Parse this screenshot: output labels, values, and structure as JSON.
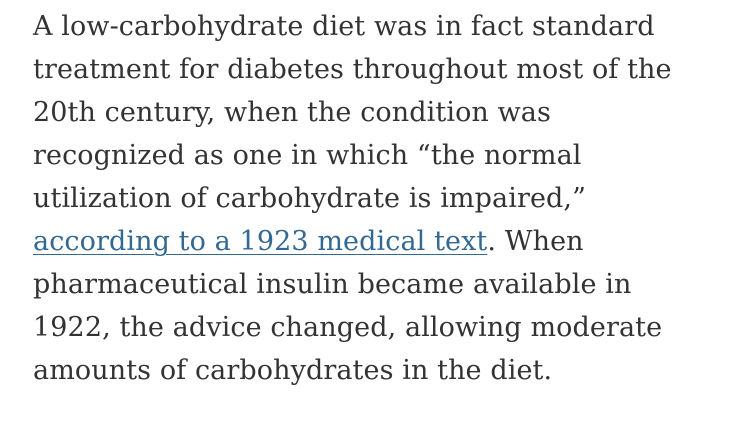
{
  "colors": {
    "page_background": "#ffffff",
    "body_text": "#333333",
    "link": "#326891"
  },
  "paragraph": {
    "text_before_link": "A low-carbohydrate diet was in fact standard\ntreatment for diabetes throughout most of the\n20th century, when the condition was\nrecognized as one in which “the normal\nutilization of carbohydrate is impaired,”\n",
    "link_text": "according to a 1923 medical text",
    "text_after_link": ". When\npharmaceutical insulin became available in\n1922, the advice changed, allowing moderate\namounts of carbohydrates in the diet."
  }
}
